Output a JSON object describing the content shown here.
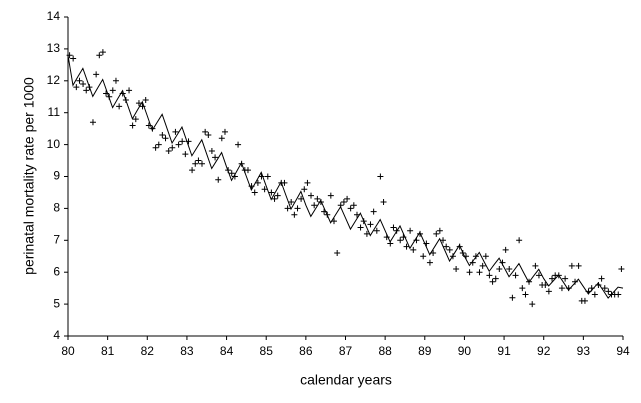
{
  "chart_data": {
    "type": "scatter",
    "xlabel": "calendar years",
    "ylabel": "perinatal mortality rate per 1000",
    "xlim": [
      80,
      94
    ],
    "ylim": [
      4,
      14
    ],
    "xticks": [
      80,
      81,
      82,
      83,
      84,
      85,
      86,
      87,
      88,
      89,
      90,
      91,
      92,
      93,
      94
    ],
    "yticks": [
      4,
      5,
      6,
      7,
      8,
      9,
      10,
      11,
      12,
      13,
      14
    ],
    "series": [
      {
        "type": "scatter",
        "marker": "+",
        "color": "#000000",
        "x": [
          80.04,
          80.13,
          80.21,
          80.29,
          80.38,
          80.46,
          80.54,
          80.63,
          80.71,
          80.79,
          80.88,
          80.96,
          81.04,
          81.13,
          81.21,
          81.29,
          81.38,
          81.46,
          81.54,
          81.63,
          81.71,
          81.79,
          81.88,
          81.96,
          82.04,
          82.13,
          82.21,
          82.29,
          82.38,
          82.46,
          82.54,
          82.63,
          82.71,
          82.79,
          82.88,
          82.96,
          83.04,
          83.13,
          83.21,
          83.29,
          83.38,
          83.46,
          83.54,
          83.63,
          83.71,
          83.79,
          83.88,
          83.96,
          84.04,
          84.13,
          84.21,
          84.29,
          84.38,
          84.46,
          84.54,
          84.63,
          84.71,
          84.79,
          84.88,
          84.96,
          85.04,
          85.13,
          85.21,
          85.29,
          85.38,
          85.46,
          85.54,
          85.63,
          85.71,
          85.79,
          85.88,
          85.96,
          86.04,
          86.13,
          86.21,
          86.29,
          86.38,
          86.46,
          86.54,
          86.63,
          86.71,
          86.79,
          86.88,
          86.96,
          87.04,
          87.13,
          87.21,
          87.29,
          87.38,
          87.46,
          87.54,
          87.63,
          87.71,
          87.79,
          87.88,
          87.96,
          88.04,
          88.13,
          88.21,
          88.29,
          88.38,
          88.46,
          88.54,
          88.63,
          88.71,
          88.79,
          88.88,
          88.96,
          89.04,
          89.13,
          89.21,
          89.29,
          89.38,
          89.46,
          89.54,
          89.63,
          89.71,
          89.79,
          89.88,
          89.96,
          90.04,
          90.13,
          90.21,
          90.29,
          90.38,
          90.46,
          90.54,
          90.63,
          90.71,
          90.79,
          90.88,
          90.96,
          91.04,
          91.13,
          91.21,
          91.29,
          91.38,
          91.46,
          91.54,
          91.63,
          91.71,
          91.79,
          91.88,
          91.96,
          92.04,
          92.13,
          92.21,
          92.29,
          92.38,
          92.46,
          92.54,
          92.63,
          92.71,
          92.79,
          92.88,
          92.96,
          93.04,
          93.13,
          93.21,
          93.29,
          93.38,
          93.46,
          93.54,
          93.63,
          93.71,
          93.79,
          93.88,
          93.96
        ],
        "values": [
          12.8,
          12.7,
          11.8,
          12.0,
          11.9,
          11.7,
          11.8,
          10.7,
          12.2,
          12.8,
          12.9,
          11.6,
          11.5,
          11.7,
          12.0,
          11.2,
          11.6,
          11.4,
          11.7,
          10.6,
          10.8,
          11.3,
          11.2,
          11.4,
          10.6,
          10.5,
          9.9,
          10.0,
          10.3,
          10.2,
          9.8,
          9.9,
          10.4,
          10.0,
          10.1,
          9.7,
          10.1,
          9.2,
          9.4,
          9.5,
          9.4,
          10.4,
          10.3,
          9.8,
          9.6,
          8.9,
          10.2,
          10.4,
          9.2,
          9.1,
          9.0,
          10.0,
          9.4,
          9.2,
          9.2,
          8.7,
          8.5,
          8.8,
          9.0,
          8.6,
          9.0,
          8.5,
          8.3,
          8.4,
          8.8,
          8.8,
          8.0,
          8.2,
          7.8,
          8.0,
          8.3,
          8.6,
          8.8,
          8.4,
          8.1,
          8.3,
          8.2,
          7.9,
          7.8,
          8.4,
          7.6,
          6.6,
          8.1,
          8.2,
          8.3,
          8.0,
          8.1,
          7.8,
          7.4,
          7.6,
          7.2,
          7.5,
          7.9,
          7.3,
          9.0,
          8.2,
          7.1,
          6.9,
          7.4,
          7.3,
          7.0,
          7.1,
          6.8,
          7.3,
          6.7,
          7.0,
          7.2,
          6.5,
          6.9,
          6.3,
          6.6,
          7.2,
          7.3,
          7.0,
          6.8,
          6.7,
          6.5,
          6.1,
          6.8,
          6.6,
          6.5,
          6.0,
          6.3,
          6.5,
          6.0,
          6.2,
          6.5,
          5.9,
          5.7,
          5.8,
          6.1,
          6.3,
          6.7,
          6.1,
          5.2,
          5.9,
          7.0,
          5.5,
          5.3,
          5.7,
          5.0,
          6.2,
          5.9,
          5.6,
          5.6,
          5.4,
          5.8,
          5.9,
          5.9,
          5.5,
          5.8,
          5.5,
          6.2,
          5.7,
          6.2,
          5.1,
          5.1,
          5.4,
          5.5,
          5.3,
          5.6,
          5.8,
          5.5,
          5.4,
          5.3,
          5.3,
          5.3,
          6.1
        ]
      },
      {
        "type": "line",
        "color": "#000000",
        "x": [
          80,
          80.125,
          80.25,
          80.375,
          80.5,
          80.625,
          80.75,
          80.875,
          81,
          81.125,
          81.25,
          81.375,
          81.5,
          81.625,
          81.75,
          81.875,
          82,
          82.125,
          82.25,
          82.375,
          82.5,
          82.625,
          82.75,
          82.875,
          83,
          83.125,
          83.25,
          83.375,
          83.5,
          83.625,
          83.75,
          83.875,
          84,
          84.125,
          84.25,
          84.375,
          84.5,
          84.625,
          84.75,
          84.875,
          85,
          85.125,
          85.25,
          85.375,
          85.5,
          85.625,
          85.75,
          85.875,
          86,
          86.125,
          86.25,
          86.375,
          86.5,
          86.625,
          86.75,
          86.875,
          87,
          87.125,
          87.25,
          87.375,
          87.5,
          87.625,
          87.75,
          87.875,
          88,
          88.125,
          88.25,
          88.375,
          88.5,
          88.625,
          88.75,
          88.875,
          89,
          89.125,
          89.25,
          89.375,
          89.5,
          89.625,
          89.75,
          89.875,
          90,
          90.125,
          90.25,
          90.375,
          90.5,
          90.625,
          90.75,
          90.875,
          91,
          91.125,
          91.25,
          91.375,
          91.5,
          91.625,
          91.75,
          91.875,
          92,
          92.125,
          92.25,
          92.375,
          92.5,
          92.625,
          92.75,
          92.875,
          93,
          93.125,
          93.25,
          93.375,
          93.5,
          93.625,
          93.75,
          93.875,
          94
        ],
        "values": [
          12.8,
          11.86,
          12.13,
          12.39,
          11.95,
          11.51,
          11.78,
          12.04,
          11.6,
          11.16,
          11.43,
          11.69,
          11.25,
          10.81,
          11.08,
          11.34,
          10.9,
          10.45,
          10.7,
          10.95,
          10.5,
          10.05,
          10.3,
          10.55,
          10.1,
          9.65,
          9.9,
          10.15,
          9.7,
          9.25,
          9.5,
          9.75,
          9.3,
          8.88,
          9.15,
          9.43,
          9.0,
          8.58,
          8.85,
          9.13,
          8.7,
          8.28,
          8.55,
          8.83,
          8.4,
          7.98,
          8.25,
          8.53,
          8.1,
          7.75,
          8.0,
          8.25,
          7.9,
          7.55,
          7.8,
          8.05,
          7.7,
          7.35,
          7.6,
          7.85,
          7.5,
          7.15,
          7.4,
          7.65,
          7.3,
          6.95,
          7.2,
          7.45,
          7.1,
          6.75,
          7.0,
          7.25,
          6.9,
          6.55,
          6.8,
          7.05,
          6.7,
          6.35,
          6.6,
          6.85,
          6.5,
          6.21,
          6.41,
          6.62,
          6.32,
          6.03,
          6.24,
          6.44,
          6.15,
          5.86,
          6.06,
          6.27,
          5.97,
          5.68,
          5.89,
          6.09,
          5.8,
          5.57,
          5.74,
          5.91,
          5.68,
          5.44,
          5.61,
          5.78,
          5.55,
          5.32,
          5.49,
          5.66,
          5.43,
          5.19,
          5.36,
          5.53,
          5.5
        ]
      }
    ]
  }
}
